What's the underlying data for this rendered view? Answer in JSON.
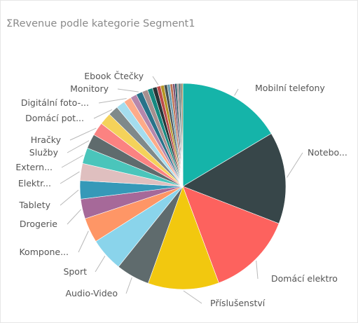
{
  "chart_data": {
    "type": "pie",
    "title": "ΣRevenue podle kategorie Segment1",
    "legend": "none",
    "slices": [
      {
        "label": "Mobilní telefony",
        "value": 16.5,
        "color": "#15b4a9"
      },
      {
        "label": "Notebo...",
        "value": 14.5,
        "color": "#374649"
      },
      {
        "label": "Domácí elektro",
        "value": 13.5,
        "color": "#fd625e"
      },
      {
        "label": "Příslušenství",
        "value": 11.2,
        "color": "#f2c80f"
      },
      {
        "label": "Audio-Video",
        "value": 5.3,
        "color": "#5f6b6d"
      },
      {
        "label": "Sport",
        "value": 5.3,
        "color": "#8ad4eb"
      },
      {
        "label": "Kompone...",
        "value": 3.9,
        "color": "#fe9666"
      },
      {
        "label": "Drogerie",
        "value": 3.1,
        "color": "#a66999"
      },
      {
        "label": "Tablety",
        "value": 2.9,
        "color": "#3599b8"
      },
      {
        "label": "Elektr...",
        "value": 2.7,
        "color": "#dfbfbf"
      },
      {
        "label": "Extern...",
        "value": 2.5,
        "color": "#4ac5bb"
      },
      {
        "label": "Služby",
        "value": 2.3,
        "color": "#5f6b6d"
      },
      {
        "label": "Hračky",
        "value": 2.1,
        "color": "#fb8281"
      },
      {
        "label": "",
        "value": 1.9,
        "color": "#f4d25a"
      },
      {
        "label": "Domácí pot...",
        "value": 1.6,
        "color": "#7f898a"
      },
      {
        "label": "",
        "value": 1.4,
        "color": "#a4ddee"
      },
      {
        "label": "Digitální foto-...",
        "value": 1.2,
        "color": "#fdab89"
      },
      {
        "label": "",
        "value": 1.0,
        "color": "#b687ac"
      },
      {
        "label": "Monitory",
        "value": 1.0,
        "color": "#28738a"
      },
      {
        "label": "",
        "value": 0.9,
        "color": "#a78f8f"
      },
      {
        "label": "",
        "value": 0.8,
        "color": "#168980"
      },
      {
        "label": "",
        "value": 0.7,
        "color": "#293537"
      },
      {
        "label": "Ebook Čtečky",
        "value": 0.6,
        "color": "#bb4a4a"
      },
      {
        "label": "",
        "value": 0.55,
        "color": "#b59525"
      },
      {
        "label": "",
        "value": 0.5,
        "color": "#475052"
      },
      {
        "label": "",
        "value": 0.45,
        "color": "#6a9fb0"
      },
      {
        "label": "",
        "value": 0.4,
        "color": "#bd7150"
      },
      {
        "label": "",
        "value": 0.35,
        "color": "#7b4f71"
      },
      {
        "label": "",
        "value": 0.3,
        "color": "#1b4d5c"
      },
      {
        "label": "",
        "value": 0.28,
        "color": "#a09090"
      },
      {
        "label": "",
        "value": 0.25,
        "color": "#3d6b66"
      },
      {
        "label": "",
        "value": 0.22,
        "color": "#555555"
      },
      {
        "label": "",
        "value": 0.2,
        "color": "#9c7a3c"
      }
    ]
  }
}
